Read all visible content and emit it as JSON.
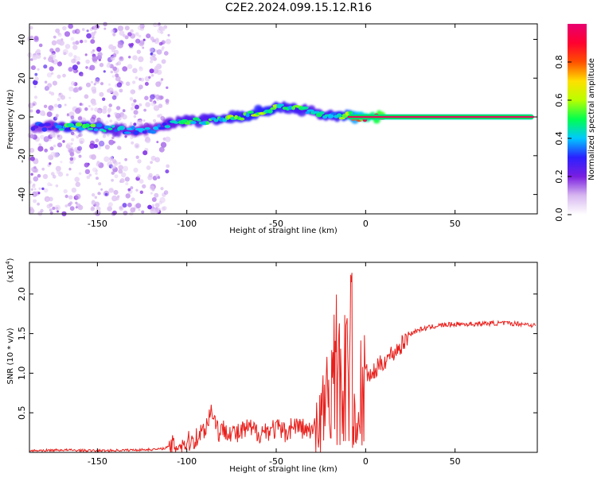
{
  "title": "C2E2.2024.099.15.12.R16",
  "chart_data": [
    {
      "type": "heatmap",
      "xlabel": "Height of straight line (km)",
      "ylabel": "Frequency (Hz)",
      "xlim": [
        -188,
        96
      ],
      "ylim": [
        -50,
        48
      ],
      "xticks": [
        -150,
        -100,
        -50,
        0,
        50
      ],
      "yticks": [
        -40,
        -20,
        0,
        20,
        40
      ],
      "colorbar": {
        "label": "Normalized spectral amplitude",
        "ticks": [
          "0.0",
          "0.2",
          "0.4",
          "0.6",
          "0.8"
        ],
        "range": [
          0,
          1
        ],
        "colors": [
          "#ffffff",
          "#d8b8f0",
          "#7a1ee0",
          "#2a20ff",
          "#00c8ff",
          "#00ff50",
          "#b8ff00",
          "#ffe000",
          "#ff5000",
          "#ff0030",
          "#e80070"
        ]
      },
      "trace": {
        "x": [
          -186,
          -175,
          -165,
          -155,
          -145,
          -135,
          -125,
          -115,
          -108,
          -100,
          -90,
          -80,
          -72,
          -65,
          -58,
          -52,
          -45,
          -38,
          -32,
          -26,
          -22,
          -18,
          -14,
          -10,
          -5,
          0,
          10,
          20,
          40,
          60,
          80,
          94
        ],
        "y": [
          -5,
          -5,
          -5,
          -5,
          -6,
          -7,
          -7,
          -6,
          -3,
          -2,
          -2,
          -1,
          0,
          1,
          3,
          4,
          5,
          4,
          3,
          2,
          0,
          1,
          0,
          1,
          0,
          0,
          0,
          0,
          0,
          0,
          0,
          0
        ],
        "amplitude": [
          0.3,
          0.35,
          0.55,
          0.5,
          0.45,
          0.4,
          0.35,
          0.35,
          0.4,
          0.45,
          0.45,
          0.5,
          0.5,
          0.55,
          0.55,
          0.55,
          0.5,
          0.5,
          0.45,
          0.45,
          0.5,
          0.45,
          0.55,
          0.6,
          0.7,
          0.8,
          1.0,
          1.0,
          1.0,
          1.0,
          1.0,
          1.0
        ]
      }
    },
    {
      "type": "line",
      "xlabel": "Height of straight line (km)",
      "ylabel": "SNR (10 * v/v)",
      "y_multiplier": "(x10",
      "y_multiplier_exp": "4",
      "y_multiplier_close": ")",
      "xlim": [
        -188,
        96
      ],
      "ylim": [
        0.0,
        2.4
      ],
      "xticks": [
        -150,
        -100,
        -50,
        0,
        50
      ],
      "yticks": [
        "0.5",
        "1.0",
        "1.5",
        "2.0"
      ],
      "color": "#e8201c",
      "series": [
        {
          "x": [
            -188,
            -170,
            -150,
            -130,
            -115,
            -108,
            -100,
            -95,
            -90,
            -86,
            -82,
            -78,
            -72,
            -66,
            -60,
            -55,
            -50,
            -45,
            -40,
            -35,
            -30,
            -26,
            -22,
            -19,
            -17,
            -15,
            -13,
            -11,
            -9,
            -8,
            -7,
            -5,
            -3,
            -1,
            1,
            3,
            6,
            10,
            15,
            20,
            25,
            30,
            40,
            50,
            60,
            70,
            80,
            90,
            95
          ],
          "y": [
            0.02,
            0.03,
            0.02,
            0.03,
            0.04,
            0.08,
            0.12,
            0.18,
            0.3,
            0.55,
            0.25,
            0.3,
            0.22,
            0.3,
            0.25,
            0.28,
            0.3,
            0.25,
            0.35,
            0.3,
            0.25,
            0.4,
            0.7,
            1.1,
            1.6,
            1.3,
            1.0,
            1.4,
            1.1,
            2.35,
            0.8,
            0.5,
            0.9,
            1.0,
            1.0,
            0.95,
            1.05,
            1.15,
            1.25,
            1.35,
            1.5,
            1.55,
            1.6,
            1.62,
            1.62,
            1.63,
            1.63,
            1.62,
            1.6
          ]
        }
      ]
    }
  ]
}
